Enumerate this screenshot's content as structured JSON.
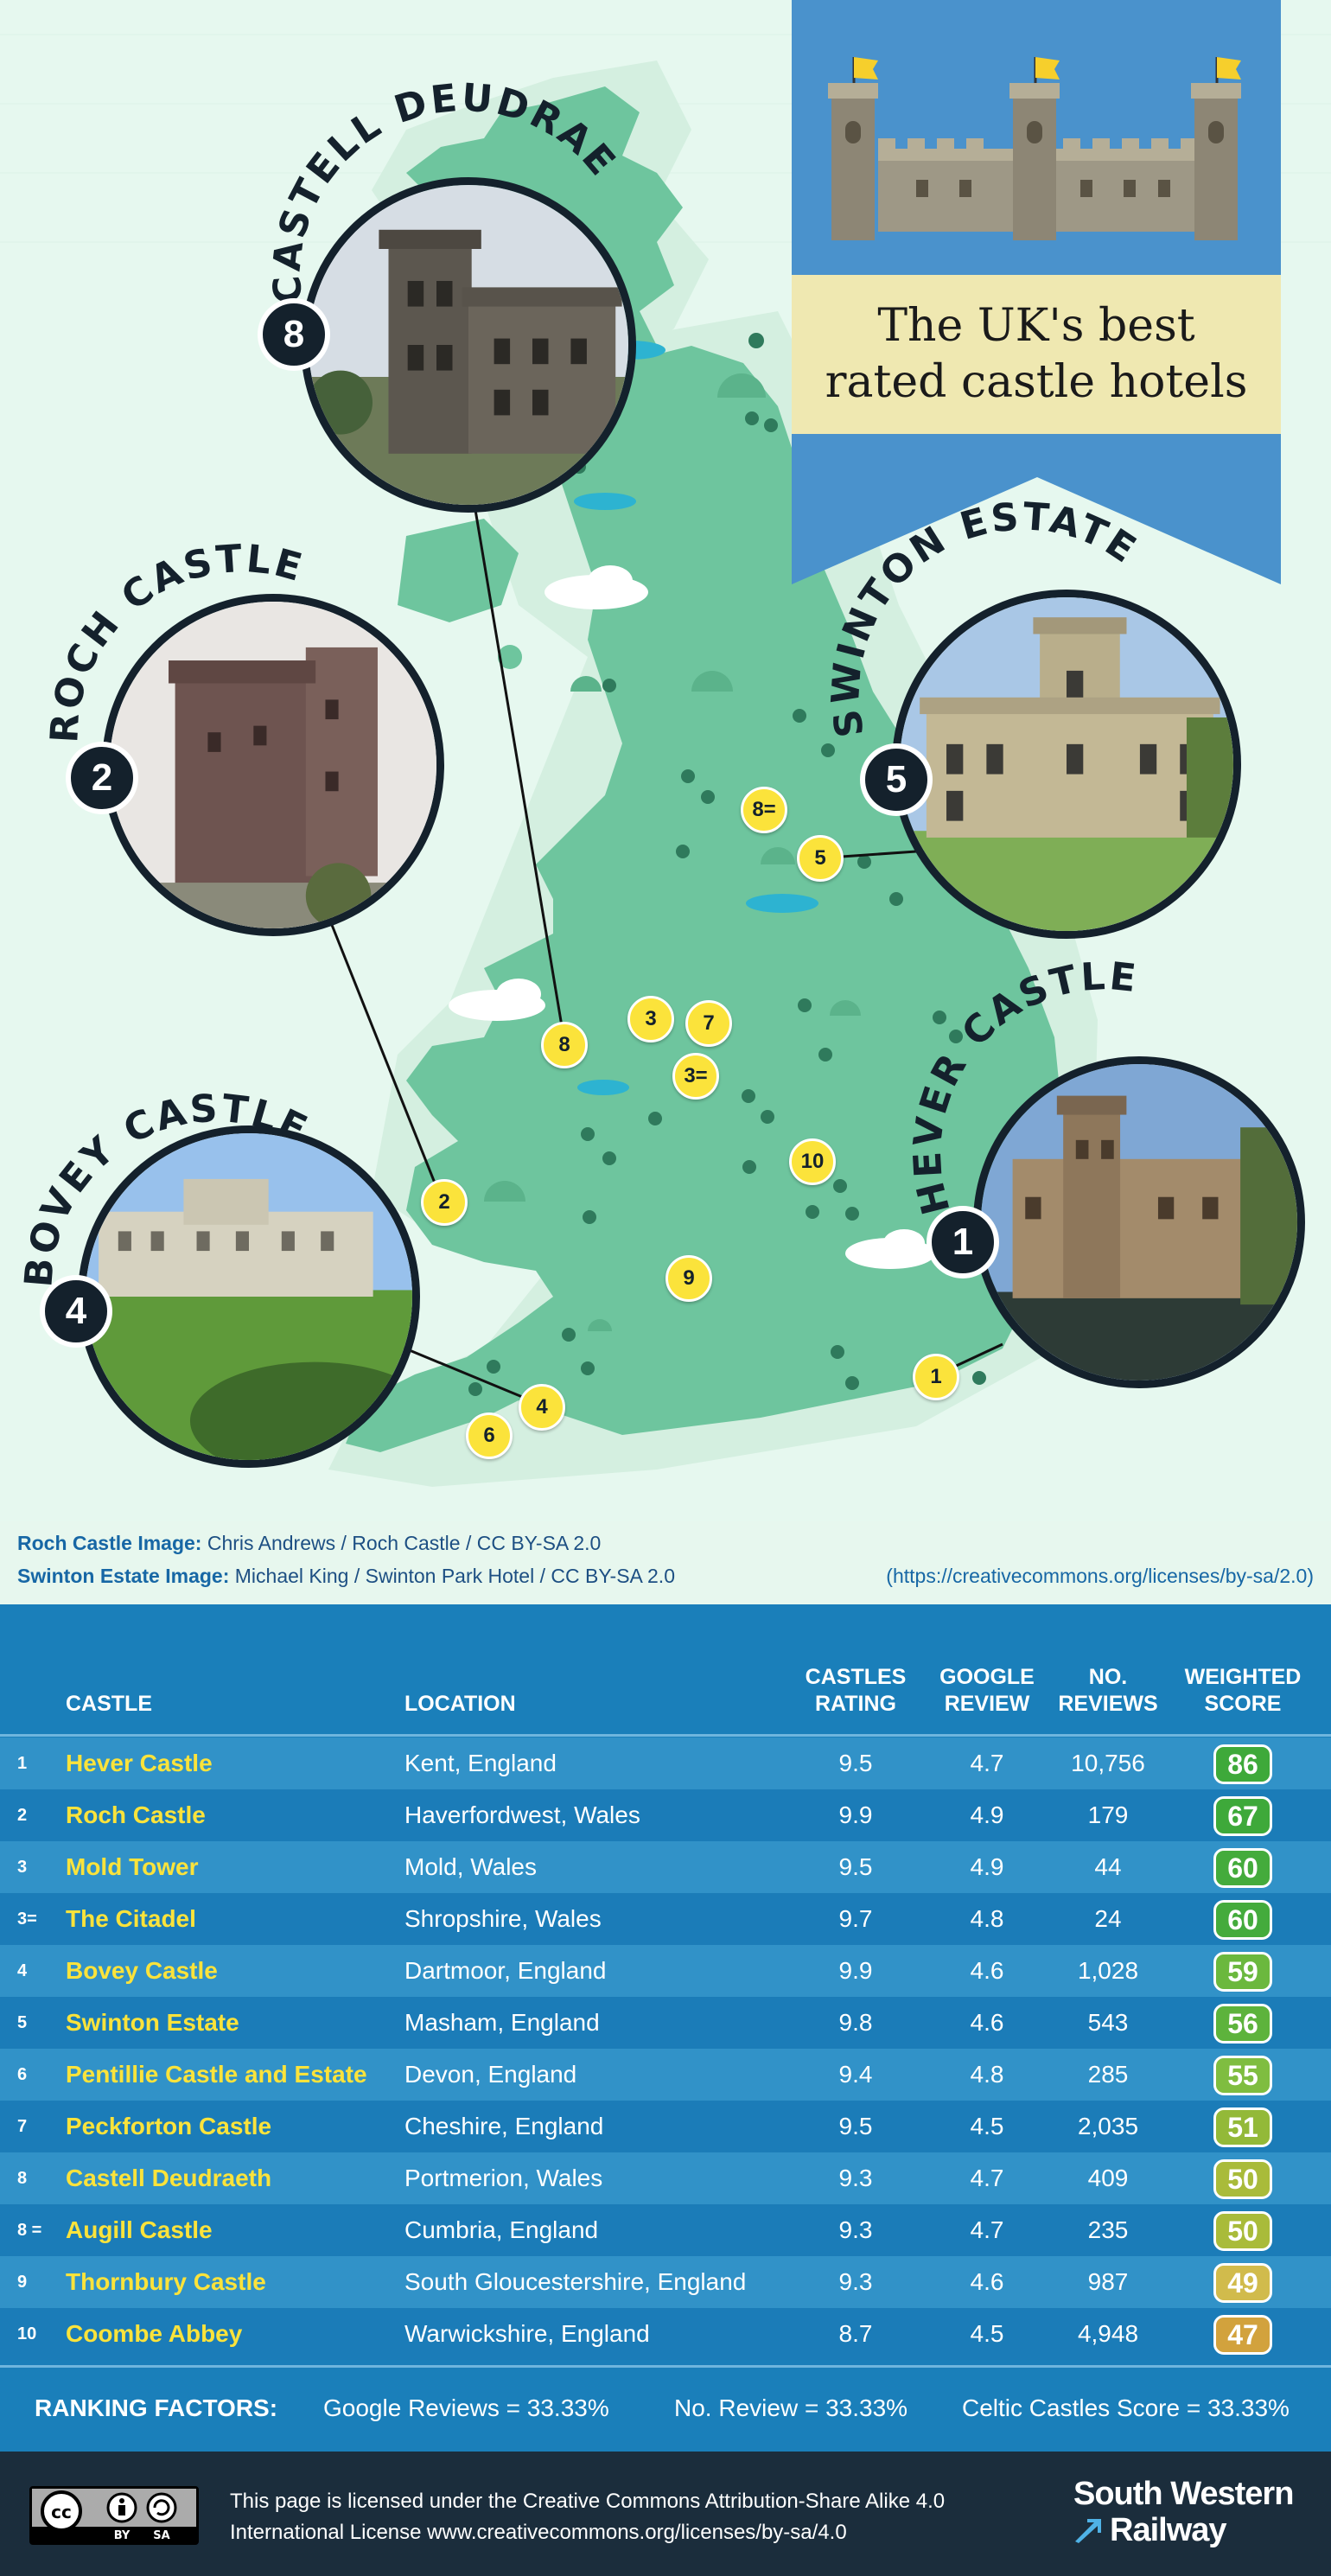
{
  "title": {
    "line1": "The UK's best",
    "line2": "rated castle hotels"
  },
  "featured": [
    {
      "name": "CASTELL DEUDRAETH",
      "rank": "8"
    },
    {
      "name": "ROCH CASTLE",
      "rank": "2"
    },
    {
      "name": "SWINTON ESTATE",
      "rank": "5"
    },
    {
      "name": "BOVEY CASTLE",
      "rank": "4"
    },
    {
      "name": "HEVER CASTLE",
      "rank": "1"
    }
  ],
  "map_markers": [
    "8=",
    "5",
    "3",
    "7",
    "8",
    "3=",
    "10",
    "2",
    "9",
    "4",
    "6",
    "1"
  ],
  "credits": {
    "roch_label": "Roch Castle Image:",
    "roch_text": "Chris Andrews / Roch Castle / CC BY-SA 2.0",
    "swinton_label": "Swinton Estate Image:",
    "swinton_text": "Michael King / Swinton Park Hotel / CC BY-SA 2.0",
    "url": "(https://creativecommons.org/licenses/by-sa/2.0)"
  },
  "table": {
    "headers": {
      "castle": "CASTLE",
      "location": "LOCATION",
      "rating_1": "CASTLES",
      "rating_2": "RATING",
      "review_1": "GOOGLE",
      "review_2": "REVIEW",
      "reviews_1": "NO.",
      "reviews_2": "REVIEWS",
      "score_1": "WEIGHTED",
      "score_2": "SCORE"
    },
    "rows": [
      {
        "rank": "1",
        "name": "Hever Castle",
        "location": "Kent, England",
        "rating": "9.5",
        "google": "4.7",
        "reviews": "10,756",
        "score": "86",
        "score_color": "#3ea93a"
      },
      {
        "rank": "2",
        "name": "Roch Castle",
        "location": "Haverfordwest, Wales",
        "rating": "9.9",
        "google": "4.9",
        "reviews": "179",
        "score": "67",
        "score_color": "#3ea93a"
      },
      {
        "rank": "3",
        "name": "Mold Tower",
        "location": "Mold, Wales",
        "rating": "9.5",
        "google": "4.9",
        "reviews": "44",
        "score": "60",
        "score_color": "#44ab3c"
      },
      {
        "rank": "3=",
        "name": "The Citadel",
        "location": "Shropshire, Wales",
        "rating": "9.7",
        "google": "4.8",
        "reviews": "24",
        "score": "60",
        "score_color": "#44ab3c"
      },
      {
        "rank": "4",
        "name": "Bovey Castle",
        "location": "Dartmoor, England",
        "rating": "9.9",
        "google": "4.6",
        "reviews": "1,028",
        "score": "59",
        "score_color": "#6bb83e"
      },
      {
        "rank": "5",
        "name": "Swinton Estate",
        "location": "Masham, England",
        "rating": "9.8",
        "google": "4.6",
        "reviews": "543",
        "score": "56",
        "score_color": "#5db33c"
      },
      {
        "rank": "6",
        "name": "Pentillie Castle and Estate",
        "location": "Devon, England",
        "rating": "9.4",
        "google": "4.8",
        "reviews": "285",
        "score": "55",
        "score_color": "#7fbd40"
      },
      {
        "rank": "7",
        "name": "Peckforton Castle",
        "location": "Cheshire, England",
        "rating": "9.5",
        "google": "4.5",
        "reviews": "2,035",
        "score": "51",
        "score_color": "#93b938"
      },
      {
        "rank": "8",
        "name": "Castell Deudraeth",
        "location": "Portmerion, Wales",
        "rating": "9.3",
        "google": "4.7",
        "reviews": "409",
        "score": "50",
        "score_color": "#a9bb3a"
      },
      {
        "rank": "8 =",
        "name": "Augill Castle",
        "location": "Cumbria, England",
        "rating": "9.3",
        "google": "4.7",
        "reviews": "235",
        "score": "50",
        "score_color": "#a9bb3a"
      },
      {
        "rank": "9",
        "name": "Thornbury Castle",
        "location": "South Gloucestershire, England",
        "rating": "9.3",
        "google": "4.6",
        "reviews": "987",
        "score": "49",
        "score_color": "#d1bb4c"
      },
      {
        "rank": "10",
        "name": "Coombe Abbey",
        "location": "Warwickshire, England",
        "rating": "8.7",
        "google": "4.5",
        "reviews": "4,948",
        "score": "47",
        "score_color": "#d2a23d"
      }
    ]
  },
  "ranking_factors": {
    "label": "RANKING FACTORS:",
    "google": "Google Reviews = 33.33%",
    "reviews": "No. Review = 33.33%",
    "celtic": "Celtic Castles Score = 33.33%"
  },
  "footer": {
    "license_1": "This page is licensed under the Creative Commons Attribution-Share Alike 4.0",
    "license_2": "International License www.creativecommons.org/licenses/by-sa/4.0",
    "cc_by": "BY",
    "cc_sa": "SA",
    "brand_1": "South Western",
    "brand_2": "Railway"
  },
  "colors": {
    "navy": "#14212c",
    "table_blue": "#1a7fba",
    "row_light": "#3192c8",
    "row_dark": "#1b7cb8",
    "marker_yellow": "#fbe33b",
    "map_green": "#6ec59e",
    "banner_blue": "#4a92cc",
    "title_cream": "#efe8b1"
  }
}
